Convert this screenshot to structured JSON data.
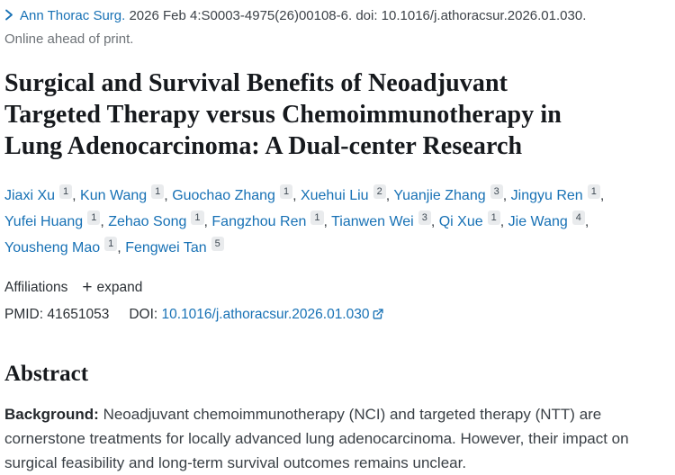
{
  "header": {
    "journal_link": "Ann Thorac Surg.",
    "citation_rest": " 2026 Feb 4:S0003-4975(26)00108-6. doi: 10.1016/j.athoracsur.2026.01.030.",
    "online_ahead": "Online ahead of print."
  },
  "title": "Surgical and Survival Benefits of Neoadjuvant Targeted Therapy versus Chemoimmunotherapy in Lung Adenocarcinoma: A Dual-center Research",
  "authors": [
    {
      "name": "Jiaxi Xu",
      "sup": "1"
    },
    {
      "name": "Kun Wang",
      "sup": "1"
    },
    {
      "name": "Guochao Zhang",
      "sup": "1"
    },
    {
      "name": "Xuehui Liu",
      "sup": "2"
    },
    {
      "name": "Yuanjie Zhang",
      "sup": "3"
    },
    {
      "name": "Jingyu Ren",
      "sup": "1"
    },
    {
      "name": "Yufei Huang",
      "sup": "1"
    },
    {
      "name": "Zehao Song",
      "sup": "1"
    },
    {
      "name": "Fangzhou Ren",
      "sup": "1"
    },
    {
      "name": "Tianwen Wei",
      "sup": "3"
    },
    {
      "name": "Qi Xue",
      "sup": "1"
    },
    {
      "name": "Jie Wang",
      "sup": "4"
    },
    {
      "name": "Yousheng Mao",
      "sup": "1"
    },
    {
      "name": "Fengwei Tan",
      "sup": "5"
    }
  ],
  "affiliations": {
    "label": "Affiliations",
    "plus_glyph": "+",
    "expand_label": "expand"
  },
  "identifiers": {
    "pmid_label": "PMID: ",
    "pmid": "41651053",
    "doi_label": "DOI: ",
    "doi": "10.1016/j.athoracsur.2026.01.030"
  },
  "abstract": {
    "heading": "Abstract",
    "background_label": "Background: ",
    "background_text": "Neoadjuvant chemoimmunotherapy (NCI) and targeted therapy (NTT) are cornerstone treatments for locally advanced lung adenocarcinoma. However, their impact on surgical feasibility and long-term survival outcomes remains unclear."
  },
  "icons": {
    "chevron": "chevron-right-icon",
    "plus": "plus-icon",
    "external_link": "external-link-icon"
  },
  "colors": {
    "link_blue": "#1771b5",
    "text_dark": "#212529",
    "text_gray": "#6d7277",
    "sup_bg": "#e9ebed",
    "title_dark": "#16191d"
  }
}
